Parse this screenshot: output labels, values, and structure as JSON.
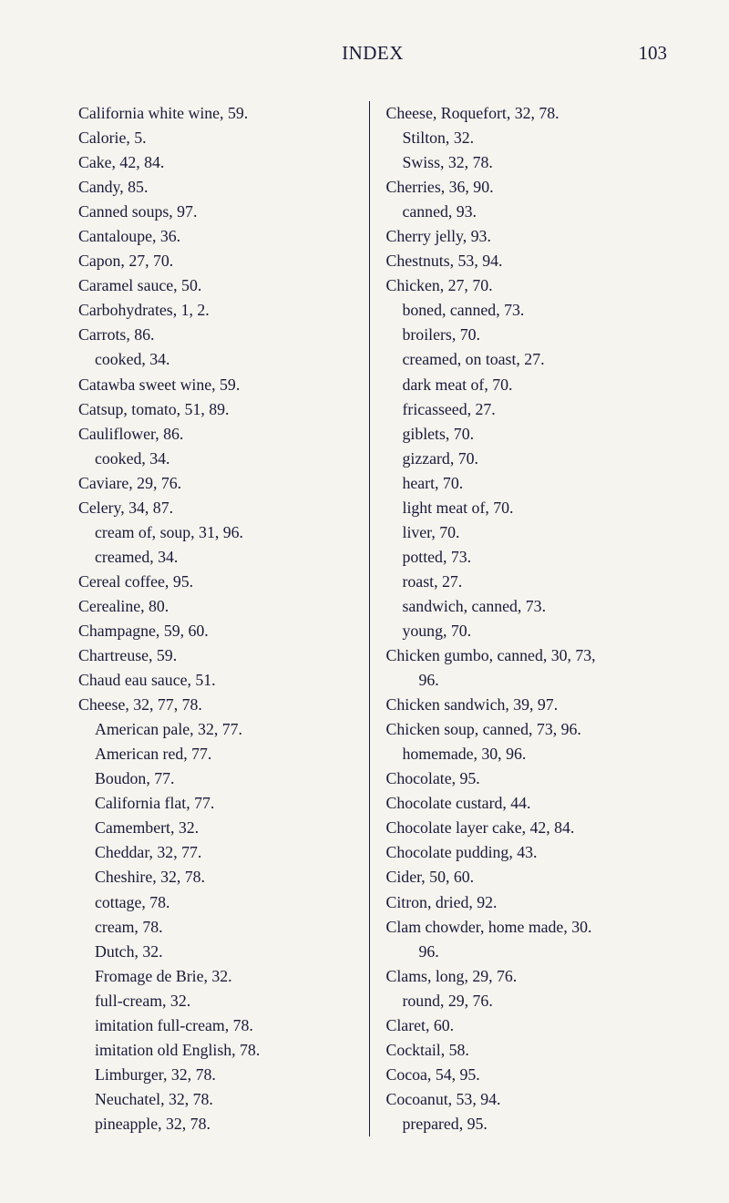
{
  "header": {
    "title": "INDEX",
    "page_number": "103"
  },
  "left_column": [
    {
      "text": "California white wine, 59.",
      "indent": 0
    },
    {
      "text": "Calorie, 5.",
      "indent": 0
    },
    {
      "text": "Cake, 42, 84.",
      "indent": 0
    },
    {
      "text": "Candy, 85.",
      "indent": 0
    },
    {
      "text": "Canned soups, 97.",
      "indent": 0
    },
    {
      "text": "Cantaloupe, 36.",
      "indent": 0
    },
    {
      "text": "Capon, 27, 70.",
      "indent": 0
    },
    {
      "text": "Caramel sauce, 50.",
      "indent": 0
    },
    {
      "text": "Carbohydrates, 1, 2.",
      "indent": 0
    },
    {
      "text": "Carrots, 86.",
      "indent": 0
    },
    {
      "text": "cooked, 34.",
      "indent": 1
    },
    {
      "text": "Catawba sweet wine, 59.",
      "indent": 0
    },
    {
      "text": "Catsup, tomato, 51, 89.",
      "indent": 0
    },
    {
      "text": "Cauliflower, 86.",
      "indent": 0
    },
    {
      "text": "cooked, 34.",
      "indent": 1
    },
    {
      "text": "Caviare, 29, 76.",
      "indent": 0
    },
    {
      "text": "Celery, 34, 87.",
      "indent": 0
    },
    {
      "text": "cream of, soup, 31, 96.",
      "indent": 1
    },
    {
      "text": "creamed, 34.",
      "indent": 1
    },
    {
      "text": "Cereal coffee, 95.",
      "indent": 0
    },
    {
      "text": "Cerealine, 80.",
      "indent": 0
    },
    {
      "text": "Champagne, 59, 60.",
      "indent": 0
    },
    {
      "text": "Chartreuse, 59.",
      "indent": 0
    },
    {
      "text": "Chaud eau sauce, 51.",
      "indent": 0
    },
    {
      "text": "Cheese, 32, 77, 78.",
      "indent": 0
    },
    {
      "text": "American pale, 32, 77.",
      "indent": 1
    },
    {
      "text": "American red, 77.",
      "indent": 1
    },
    {
      "text": "Boudon, 77.",
      "indent": 1
    },
    {
      "text": "California flat, 77.",
      "indent": 1
    },
    {
      "text": "Camembert, 32.",
      "indent": 1
    },
    {
      "text": "Cheddar, 32, 77.",
      "indent": 1
    },
    {
      "text": "Cheshire, 32, 78.",
      "indent": 1
    },
    {
      "text": "cottage, 78.",
      "indent": 1
    },
    {
      "text": "cream, 78.",
      "indent": 1
    },
    {
      "text": "Dutch, 32.",
      "indent": 1
    },
    {
      "text": "Fromage de Brie, 32.",
      "indent": 1
    },
    {
      "text": "full-cream, 32.",
      "indent": 1
    },
    {
      "text": "imitation full-cream, 78.",
      "indent": 1
    },
    {
      "text": "imitation old English, 78.",
      "indent": 1
    },
    {
      "text": "Limburger, 32, 78.",
      "indent": 1
    },
    {
      "text": "Neuchatel, 32, 78.",
      "indent": 1
    },
    {
      "text": "pineapple, 32, 78.",
      "indent": 1
    }
  ],
  "right_column": [
    {
      "text": "Cheese, Roquefort, 32, 78.",
      "indent": 0
    },
    {
      "text": "Stilton, 32.",
      "indent": 1
    },
    {
      "text": "Swiss, 32, 78.",
      "indent": 1
    },
    {
      "text": "Cherries, 36, 90.",
      "indent": 0
    },
    {
      "text": "canned, 93.",
      "indent": 1
    },
    {
      "text": "Cherry jelly, 93.",
      "indent": 0
    },
    {
      "text": "Chestnuts, 53, 94.",
      "indent": 0
    },
    {
      "text": "Chicken, 27, 70.",
      "indent": 0
    },
    {
      "text": "boned, canned, 73.",
      "indent": 1
    },
    {
      "text": "broilers, 70.",
      "indent": 1
    },
    {
      "text": "creamed, on toast, 27.",
      "indent": 1
    },
    {
      "text": "dark meat of, 70.",
      "indent": 1
    },
    {
      "text": "fricasseed, 27.",
      "indent": 1
    },
    {
      "text": "giblets, 70.",
      "indent": 1
    },
    {
      "text": "gizzard, 70.",
      "indent": 1
    },
    {
      "text": "heart, 70.",
      "indent": 1
    },
    {
      "text": "light meat of, 70.",
      "indent": 1
    },
    {
      "text": "liver, 70.",
      "indent": 1
    },
    {
      "text": "potted, 73.",
      "indent": 1
    },
    {
      "text": "roast, 27.",
      "indent": 1
    },
    {
      "text": "sandwich, canned, 73.",
      "indent": 1
    },
    {
      "text": "young, 70.",
      "indent": 1
    },
    {
      "text": "Chicken gumbo, canned, 30, 73,",
      "indent": 0
    },
    {
      "text": "96.",
      "indent": 2
    },
    {
      "text": "Chicken sandwich, 39, 97.",
      "indent": 0
    },
    {
      "text": "Chicken soup, canned, 73, 96.",
      "indent": 0
    },
    {
      "text": "homemade, 30, 96.",
      "indent": 1
    },
    {
      "text": "Chocolate, 95.",
      "indent": 0
    },
    {
      "text": "Chocolate custard, 44.",
      "indent": 0
    },
    {
      "text": "Chocolate layer cake, 42, 84.",
      "indent": 0
    },
    {
      "text": "Chocolate pudding, 43.",
      "indent": 0
    },
    {
      "text": "Cider, 50, 60.",
      "indent": 0
    },
    {
      "text": "Citron, dried, 92.",
      "indent": 0
    },
    {
      "text": "Clam chowder, home made, 30.",
      "indent": 0
    },
    {
      "text": "96.",
      "indent": 2
    },
    {
      "text": "Clams, long, 29, 76.",
      "indent": 0
    },
    {
      "text": "round, 29, 76.",
      "indent": 1
    },
    {
      "text": "Claret, 60.",
      "indent": 0
    },
    {
      "text": "Cocktail, 58.",
      "indent": 0
    },
    {
      "text": "Cocoa, 54, 95.",
      "indent": 0
    },
    {
      "text": "Cocoanut, 53, 94.",
      "indent": 0
    },
    {
      "text": "prepared, 95.",
      "indent": 1
    }
  ]
}
